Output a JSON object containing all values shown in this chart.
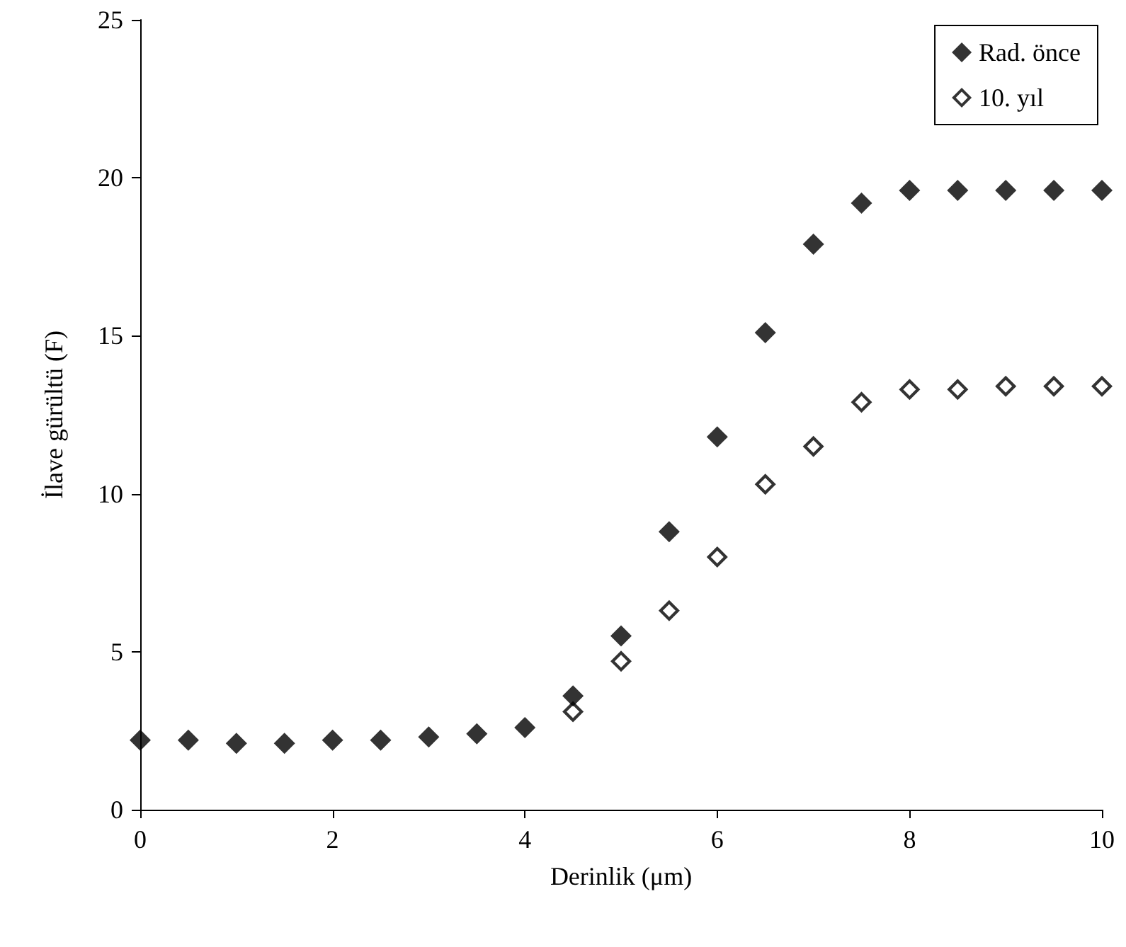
{
  "chart_data": {
    "type": "scatter",
    "xlabel": "Derinlik (μm)",
    "ylabel": "İlave gürültü (F)",
    "x": [
      0,
      0.5,
      1,
      1.5,
      2,
      2.5,
      3,
      3.5,
      4,
      4.5,
      5,
      5.5,
      6,
      6.5,
      7,
      7.5,
      8,
      8.5,
      9,
      9.5,
      10
    ],
    "series": [
      {
        "name": "Rad. önce",
        "color": "#000000",
        "marker": "diamond",
        "values": [
          2.2,
          2.2,
          2.1,
          2.1,
          2.2,
          2.2,
          2.3,
          2.4,
          2.6,
          3.6,
          5.5,
          8.8,
          11.8,
          15.1,
          17.9,
          19.2,
          19.6,
          19.6,
          19.6,
          19.6,
          19.6
        ]
      },
      {
        "name": "10. yıl",
        "color": "#000000",
        "marker": "diamond-open",
        "values": [
          null,
          null,
          null,
          null,
          null,
          null,
          null,
          null,
          null,
          3.1,
          4.7,
          6.3,
          8.0,
          10.3,
          11.5,
          12.9,
          13.3,
          13.3,
          13.4,
          13.4,
          13.4
        ]
      }
    ],
    "xlim": [
      0,
      10
    ],
    "xticks": [
      0,
      2,
      4,
      6,
      8,
      10
    ],
    "ylim": [
      0,
      25
    ],
    "yticks": [
      0,
      5,
      10,
      15,
      20,
      25
    ],
    "grid": false,
    "legend": "top right"
  }
}
